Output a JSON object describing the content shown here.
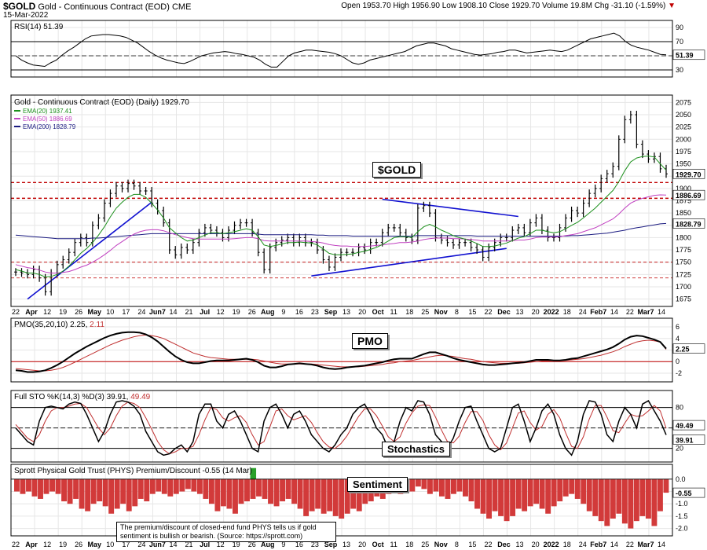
{
  "header": {
    "symbol": "$GOLD",
    "name": "Gold - Continuous Contract (EOD)",
    "exchange": "CME",
    "date": "15-Mar-2022",
    "quote": "Open 1953.70  High 1956.90  Low 1908.10  Close 1929.70  Volume 19.8M  Chg -31.10 (-1.59%)",
    "down_arrow": "▼"
  },
  "colors": {
    "price": "#000000",
    "ema20": "#1a8f1a",
    "ema50": "#c040c0",
    "ema200": "#1a1a80",
    "red_line": "#c00000",
    "blue_line": "#1010d0",
    "signal": "#c03030",
    "bar_fill": "#d23a3a",
    "bar_pos": "#2aa02a",
    "grid": "#e6e6e6"
  },
  "callouts": {
    "gold": "$GOLD",
    "pmo": "PMO",
    "stochastics": "Stochastics",
    "sentiment": "Sentiment",
    "note": "The premium/discount of closed-end fund PHYS tells us if gold sentiment is bullish or bearish. (Source: https://sprott.com)"
  },
  "chart_data": [
    {
      "type": "line",
      "id": "rsi",
      "label": "RSI(14) 51.39",
      "ylim": [
        20,
        100
      ],
      "ticks": [
        30,
        50,
        70,
        90
      ],
      "levels": [
        30,
        70
      ],
      "midline": 50,
      "last_value": "51.39",
      "values": [
        50,
        44,
        40,
        37,
        36,
        35,
        40,
        44,
        51,
        57,
        62,
        68,
        74,
        78,
        79,
        80,
        80,
        79,
        78,
        76,
        72,
        68,
        62,
        56,
        51,
        47,
        44,
        42,
        40,
        39,
        42,
        46,
        50,
        52,
        54,
        55,
        56,
        55,
        53,
        52,
        50,
        48,
        44,
        38,
        34,
        34,
        42,
        50,
        54,
        56,
        58,
        58,
        57,
        56,
        55,
        53,
        50,
        45,
        40,
        38,
        40,
        44,
        46,
        48,
        50,
        52,
        54,
        56,
        60,
        64,
        66,
        68,
        68,
        66,
        64,
        60,
        58,
        56,
        54,
        52,
        51,
        52,
        53,
        55,
        56,
        58,
        58,
        56,
        54,
        55,
        56,
        57,
        58,
        57,
        56,
        58,
        62,
        66,
        70,
        74,
        76,
        78,
        80,
        82,
        78,
        70,
        65,
        62,
        60,
        58,
        55,
        52,
        51.39
      ]
    },
    {
      "type": "line",
      "id": "price",
      "label": "Gold - Continuous Contract (EOD) (Daily) 1929.70",
      "legend": [
        "EMA(20) 1937.41",
        "EMA(50) 1886.69",
        "EMA(200) 1828.79"
      ],
      "ylim": [
        1660,
        2090
      ],
      "ticks": [
        1675,
        1700,
        1725,
        1750,
        1775,
        1800,
        1825,
        1850,
        1875,
        1900,
        1925,
        1950,
        1975,
        2000,
        2025,
        2050,
        2075
      ],
      "price_labels": {
        "close": "1929.70",
        "ema50": "1886.69",
        "ema200": "1828.79"
      },
      "red_levels": [
        1912,
        1880,
        1750,
        1718
      ],
      "x_labels": [
        "22",
        "Apr",
        "12",
        "19",
        "26",
        "May",
        "10",
        "17",
        "24",
        "Jun7",
        "14",
        "21",
        "Jul",
        "12",
        "19",
        "26",
        "Aug",
        "9",
        "16",
        "23",
        "Sep",
        "13",
        "20",
        "Oct",
        "11",
        "18",
        "25",
        "Nov",
        "8",
        "15",
        "22",
        "Dec",
        "13",
        "20",
        "2022",
        "18",
        "24",
        "Feb7",
        "14",
        "22",
        "Mar7",
        "14"
      ],
      "close": [
        1730,
        1728,
        1725,
        1735,
        1718,
        1690,
        1728,
        1745,
        1755,
        1770,
        1790,
        1800,
        1790,
        1825,
        1840,
        1870,
        1890,
        1905,
        1900,
        1910,
        1905,
        1895,
        1895,
        1870,
        1855,
        1830,
        1775,
        1765,
        1780,
        1775,
        1790,
        1810,
        1820,
        1815,
        1810,
        1800,
        1815,
        1825,
        1830,
        1830,
        1810,
        1770,
        1735,
        1780,
        1790,
        1795,
        1800,
        1790,
        1800,
        1790,
        1790,
        1775,
        1755,
        1740,
        1760,
        1770,
        1770,
        1770,
        1780,
        1775,
        1790,
        1790,
        1810,
        1820,
        1820,
        1810,
        1800,
        1795,
        1860,
        1865,
        1850,
        1800,
        1795,
        1790,
        1785,
        1790,
        1790,
        1780,
        1775,
        1760,
        1780,
        1790,
        1800,
        1800,
        1815,
        1820,
        1810,
        1830,
        1840,
        1815,
        1800,
        1800,
        1820,
        1840,
        1855,
        1850,
        1870,
        1890,
        1900,
        1920,
        1930,
        1945,
        2000,
        2040,
        2050,
        1990,
        1970,
        1960,
        1965,
        1940,
        1929.7
      ],
      "ema20": [
        1735,
        1732,
        1728,
        1728,
        1725,
        1720,
        1721,
        1725,
        1732,
        1742,
        1755,
        1768,
        1778,
        1790,
        1805,
        1822,
        1842,
        1860,
        1872,
        1882,
        1888,
        1888,
        1882,
        1870,
        1856,
        1840,
        1820,
        1810,
        1800,
        1793,
        1795,
        1800,
        1805,
        1810,
        1810,
        1808,
        1810,
        1812,
        1815,
        1818,
        1815,
        1802,
        1785,
        1782,
        1784,
        1787,
        1790,
        1790,
        1791,
        1790,
        1789,
        1785,
        1777,
        1768,
        1765,
        1765,
        1766,
        1767,
        1770,
        1772,
        1776,
        1780,
        1786,
        1793,
        1800,
        1802,
        1802,
        1800,
        1812,
        1822,
        1827,
        1822,
        1815,
        1810,
        1804,
        1800,
        1797,
        1793,
        1788,
        1782,
        1782,
        1783,
        1786,
        1789,
        1794,
        1799,
        1802,
        1808,
        1815,
        1815,
        1812,
        1810,
        1812,
        1818,
        1825,
        1831,
        1840,
        1850,
        1860,
        1872,
        1884,
        1896,
        1914,
        1936,
        1954,
        1962,
        1965,
        1966,
        1964,
        1950,
        1937.41
      ],
      "ema50": [
        1745,
        1742,
        1739,
        1737,
        1734,
        1730,
        1728,
        1728,
        1729,
        1731,
        1735,
        1740,
        1744,
        1750,
        1757,
        1765,
        1774,
        1784,
        1792,
        1800,
        1807,
        1812,
        1815,
        1816,
        1816,
        1814,
        1810,
        1806,
        1803,
        1800,
        1798,
        1797,
        1797,
        1797,
        1797,
        1797,
        1797,
        1798,
        1799,
        1800,
        1800,
        1798,
        1794,
        1793,
        1793,
        1793,
        1793,
        1793,
        1793,
        1793,
        1792,
        1791,
        1789,
        1786,
        1784,
        1783,
        1783,
        1782,
        1782,
        1782,
        1783,
        1784,
        1785,
        1787,
        1788,
        1790,
        1790,
        1791,
        1793,
        1796,
        1798,
        1799,
        1799,
        1799,
        1798,
        1798,
        1797,
        1796,
        1795,
        1793,
        1793,
        1793,
        1793,
        1793,
        1794,
        1795,
        1795,
        1797,
        1800,
        1801,
        1801,
        1801,
        1802,
        1804,
        1806,
        1808,
        1812,
        1816,
        1820,
        1826,
        1832,
        1838,
        1848,
        1860,
        1870,
        1876,
        1880,
        1883,
        1886,
        1887,
        1886.69
      ],
      "ema200": [
        1805,
        1804,
        1803,
        1802,
        1801,
        1800,
        1799,
        1798,
        1798,
        1798,
        1798,
        1798,
        1798,
        1799,
        1799,
        1800,
        1801,
        1802,
        1803,
        1804,
        1805,
        1806,
        1807,
        1808,
        1808,
        1808,
        1808,
        1808,
        1808,
        1808,
        1808,
        1808,
        1808,
        1808,
        1808,
        1808,
        1808,
        1808,
        1808,
        1808,
        1808,
        1807,
        1806,
        1806,
        1806,
        1806,
        1806,
        1806,
        1806,
        1806,
        1806,
        1805,
        1805,
        1804,
        1804,
        1804,
        1804,
        1803,
        1803,
        1803,
        1803,
        1803,
        1803,
        1803,
        1803,
        1803,
        1803,
        1803,
        1804,
        1804,
        1804,
        1804,
        1804,
        1804,
        1804,
        1804,
        1804,
        1804,
        1803,
        1803,
        1803,
        1803,
        1803,
        1803,
        1803,
        1803,
        1803,
        1803,
        1803,
        1803,
        1803,
        1803,
        1803,
        1803,
        1804,
        1804,
        1805,
        1806,
        1807,
        1808,
        1809,
        1811,
        1813,
        1815,
        1818,
        1820,
        1822,
        1824,
        1826,
        1828,
        1828.79
      ],
      "trendlines": [
        {
          "from": [
            2,
            1675
          ],
          "to": [
            23,
            1872
          ]
        },
        {
          "from": [
            50,
            1722
          ],
          "to": [
            83,
            1778
          ]
        },
        {
          "from": [
            62,
            1878
          ],
          "to": [
            85,
            1843
          ]
        }
      ]
    },
    {
      "type": "line",
      "id": "pmo",
      "label": "PMO(35,20,10) 2.25,",
      "signal_label": "2.11",
      "ylim": [
        -3.5,
        7.5
      ],
      "ticks": [
        -2,
        0,
        2,
        4,
        6
      ],
      "midline": 0,
      "last_value": "2.25",
      "pmo": [
        -1.5,
        -1.6,
        -1.8,
        -1.8,
        -1.7,
        -1.5,
        -1.1,
        -0.6,
        0.0,
        0.7,
        1.4,
        2.0,
        2.6,
        3.1,
        3.6,
        4.1,
        4.5,
        4.8,
        5.0,
        5.1,
        5.1,
        5.0,
        4.7,
        4.2,
        3.5,
        2.6,
        1.7,
        0.9,
        0.3,
        -0.1,
        -0.3,
        -0.3,
        -0.1,
        0.1,
        0.2,
        0.2,
        0.2,
        0.3,
        0.4,
        0.5,
        0.3,
        -0.1,
        -0.7,
        -1.0,
        -1.0,
        -0.8,
        -0.5,
        -0.4,
        -0.3,
        -0.4,
        -0.5,
        -0.7,
        -1.0,
        -1.2,
        -1.3,
        -1.2,
        -1.0,
        -0.9,
        -0.8,
        -0.7,
        -0.5,
        -0.3,
        -0.1,
        0.2,
        0.4,
        0.5,
        0.5,
        0.5,
        0.9,
        1.3,
        1.6,
        1.6,
        1.3,
        1.0,
        0.6,
        0.3,
        0.1,
        -0.1,
        -0.3,
        -0.5,
        -0.6,
        -0.6,
        -0.5,
        -0.4,
        -0.3,
        -0.2,
        -0.1,
        0.1,
        0.3,
        0.3,
        0.3,
        0.2,
        0.2,
        0.3,
        0.5,
        0.6,
        0.9,
        1.2,
        1.5,
        1.8,
        2.1,
        2.5,
        3.1,
        3.8,
        4.3,
        4.5,
        4.4,
        4.1,
        3.8,
        3.4,
        2.25
      ],
      "signal": [
        -1.2,
        -1.3,
        -1.4,
        -1.5,
        -1.6,
        -1.6,
        -1.5,
        -1.3,
        -1.0,
        -0.6,
        -0.1,
        0.4,
        0.9,
        1.4,
        1.9,
        2.4,
        2.9,
        3.3,
        3.7,
        4.0,
        4.3,
        4.5,
        4.6,
        4.5,
        4.3,
        4.0,
        3.5,
        3.0,
        2.5,
        2.0,
        1.5,
        1.2,
        0.9,
        0.7,
        0.6,
        0.5,
        0.4,
        0.4,
        0.4,
        0.4,
        0.4,
        0.3,
        0.1,
        -0.1,
        -0.3,
        -0.4,
        -0.4,
        -0.4,
        -0.4,
        -0.4,
        -0.4,
        -0.5,
        -0.6,
        -0.7,
        -0.8,
        -0.9,
        -0.9,
        -0.9,
        -0.9,
        -0.8,
        -0.7,
        -0.6,
        -0.5,
        -0.3,
        -0.2,
        0.0,
        0.1,
        0.2,
        0.4,
        0.6,
        0.8,
        1.0,
        1.1,
        1.0,
        0.9,
        0.7,
        0.5,
        0.4,
        0.2,
        0.0,
        -0.1,
        -0.2,
        -0.3,
        -0.3,
        -0.3,
        -0.3,
        -0.2,
        -0.1,
        0.0,
        0.1,
        0.1,
        0.2,
        0.2,
        0.2,
        0.3,
        0.4,
        0.5,
        0.7,
        0.9,
        1.1,
        1.4,
        1.7,
        2.1,
        2.6,
        3.0,
        3.4,
        3.6,
        3.7,
        3.6,
        3.4,
        2.11
      ]
    },
    {
      "type": "line",
      "id": "sto",
      "label": "Full STO %K(14,3) %D(3) 39.91,",
      "d_label": "49.49",
      "ylim": [
        0,
        105
      ],
      "ticks": [
        20,
        50,
        80
      ],
      "levels": [
        20,
        80
      ],
      "midline": 50,
      "k_label": "39.91",
      "d_value_label": "49.49",
      "k": [
        50,
        40,
        30,
        25,
        60,
        80,
        82,
        80,
        78,
        85,
        88,
        86,
        70,
        50,
        30,
        45,
        70,
        88,
        90,
        88,
        82,
        70,
        45,
        30,
        15,
        10,
        12,
        20,
        25,
        15,
        30,
        70,
        85,
        85,
        60,
        50,
        70,
        75,
        60,
        40,
        20,
        15,
        60,
        80,
        85,
        70,
        50,
        70,
        75,
        60,
        40,
        30,
        20,
        15,
        25,
        40,
        50,
        70,
        80,
        85,
        70,
        50,
        40,
        20,
        30,
        60,
        80,
        75,
        90,
        88,
        70,
        40,
        30,
        20,
        35,
        60,
        80,
        82,
        60,
        40,
        20,
        15,
        20,
        50,
        80,
        85,
        60,
        30,
        50,
        75,
        85,
        70,
        40,
        20,
        10,
        30,
        70,
        90,
        88,
        70,
        40,
        30,
        60,
        80,
        70,
        50,
        85,
        90,
        75,
        60,
        39.91
      ],
      "d": [
        55,
        45,
        35,
        30,
        40,
        60,
        75,
        80,
        80,
        82,
        85,
        86,
        80,
        65,
        50,
        40,
        50,
        68,
        82,
        88,
        86,
        80,
        65,
        48,
        30,
        18,
        12,
        15,
        20,
        20,
        23,
        40,
        62,
        80,
        77,
        65,
        60,
        65,
        68,
        58,
        40,
        25,
        30,
        52,
        75,
        78,
        68,
        62,
        65,
        68,
        58,
        43,
        30,
        22,
        20,
        27,
        38,
        53,
        67,
        78,
        78,
        68,
        53,
        37,
        30,
        37,
        57,
        72,
        82,
        84,
        83,
        66,
        47,
        30,
        28,
        38,
        58,
        74,
        74,
        61,
        40,
        25,
        18,
        28,
        50,
        72,
        75,
        58,
        47,
        52,
        70,
        77,
        65,
        43,
        23,
        20,
        37,
        63,
        83,
        83,
        66,
        46,
        43,
        57,
        70,
        67,
        68,
        75,
        83,
        75,
        49.49
      ]
    },
    {
      "type": "bar",
      "id": "phys",
      "label": "Sprott Physical Gold Trust (PHYS) Premium/Discount -0.55 (14 Mar)",
      "ylim": [
        -2.3,
        0.6
      ],
      "ticks": [
        0.0,
        -0.5,
        -1.0,
        -1.5,
        -2.0
      ],
      "midline": 0,
      "last_value": "-0.55",
      "values": [
        -0.5,
        -0.6,
        -0.5,
        -0.7,
        -0.8,
        -0.6,
        -0.5,
        -0.6,
        -0.9,
        -1.0,
        -0.8,
        -1.2,
        -1.3,
        -1.0,
        -0.9,
        -1.1,
        -1.4,
        -1.2,
        -1.0,
        -1.3,
        -1.1,
        -0.8,
        -0.9,
        -0.6,
        -0.5,
        -0.6,
        -0.7,
        -0.6,
        -0.5,
        -0.4,
        -0.5,
        -0.6,
        -0.8,
        -1.0,
        -1.3,
        -1.1,
        -1.2,
        -1.4,
        -1.0,
        -0.9,
        -0.8,
        -0.7,
        -0.8,
        -1.0,
        -1.1,
        -0.9,
        -0.8,
        -1.0,
        -1.2,
        -1.5,
        -1.3,
        -1.2,
        -1.4,
        -1.3,
        -1.5,
        -1.6,
        -1.4,
        -1.2,
        -1.3,
        -1.0,
        -0.9,
        -0.7,
        -0.8,
        -0.6,
        -0.5,
        -0.6,
        -0.4,
        -0.5,
        -0.3,
        -0.4,
        -0.6,
        -0.5,
        -0.7,
        -0.8,
        -0.6,
        -0.5,
        -0.7,
        -0.9,
        -1.2,
        -1.4,
        -1.6,
        -1.3,
        -1.5,
        -1.7,
        -1.5,
        -1.2,
        -1.3,
        -1.1,
        -1.0,
        -1.2,
        -1.4,
        -1.1,
        -0.9,
        -0.7,
        -0.6,
        -0.8,
        -1.0,
        -1.3,
        -1.5,
        -1.7,
        -1.9,
        -1.6,
        -1.4,
        -1.8,
        -2.0,
        -1.7,
        -1.5,
        -1.6,
        -1.9,
        -1.3,
        -0.55
      ],
      "positive_spike_index": 40
    }
  ]
}
